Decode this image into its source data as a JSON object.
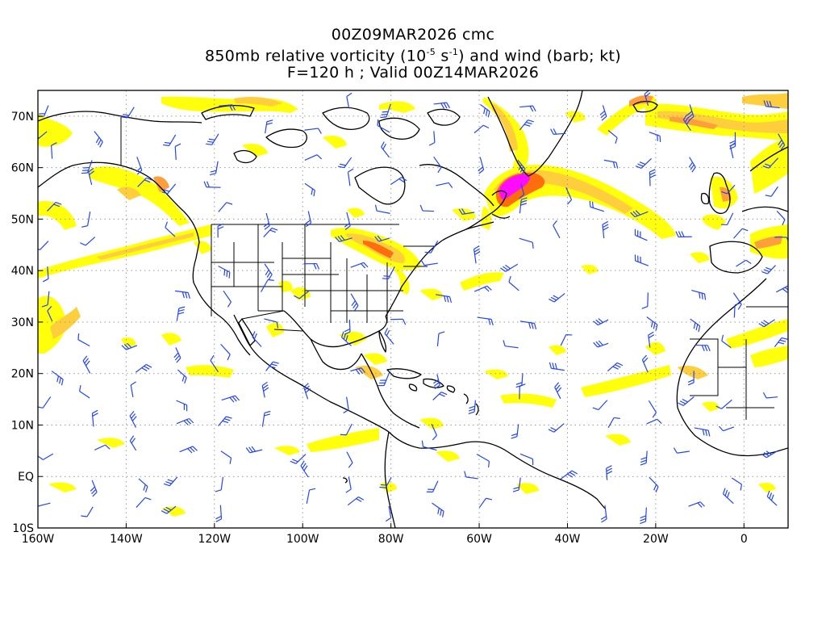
{
  "header": {
    "line1": "00Z09MAR2026 cmc",
    "line2_a": "850mb relative vorticity (10",
    "line2_sup1": "-5",
    "line2_b": " s",
    "line2_sup2": "-1",
    "line2_c": ") and wind (barb; kt)",
    "line3": "F=120 h ; Valid 00Z14MAR2026"
  },
  "axes": {
    "lat_labels": [
      "70N",
      "60N",
      "50N",
      "40N",
      "30N",
      "20N",
      "10N",
      "EQ",
      "10S"
    ],
    "lon_labels": [
      "160W",
      "140W",
      "120W",
      "100W",
      "80W",
      "60W",
      "40W",
      "20W",
      "0"
    ]
  },
  "colors": {
    "vort_low": "#ffff00",
    "vort_mid": "#ffcc33",
    "vort_high": "#ff6600",
    "vort_max": "#ff00ff",
    "barbs": "#2244ff",
    "coast": "#000000",
    "grid": "#999999"
  },
  "map": {
    "projection": "cylindrical equidistant",
    "lon_range": [
      -160,
      10
    ],
    "lat_range": [
      -10,
      75
    ],
    "grid": "dotted"
  }
}
